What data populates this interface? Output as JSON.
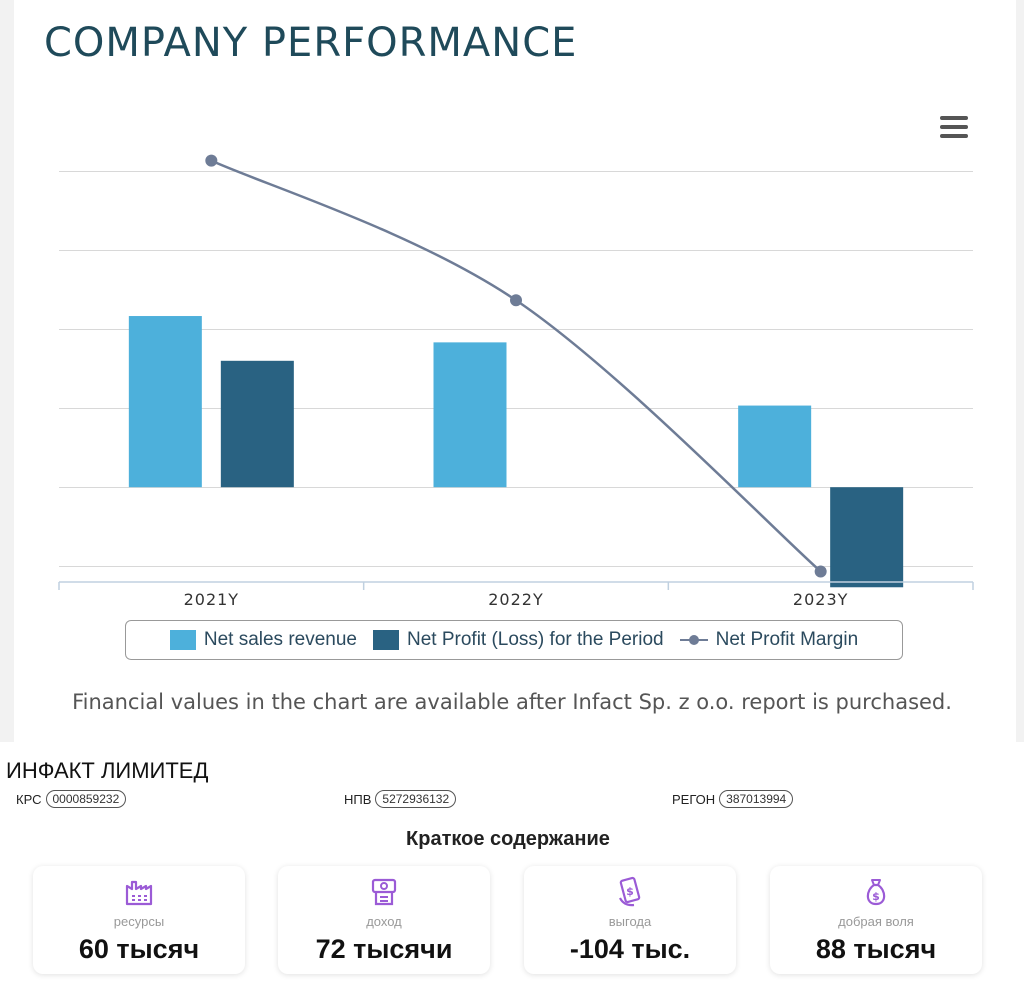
{
  "title": "COMPANY PERFORMANCE",
  "chart_data": {
    "type": "bar",
    "categories": [
      "2021Y",
      "2022Y",
      "2023Y"
    ],
    "series": [
      {
        "name": "Net sales revenue",
        "type": "bar",
        "color": "#4db0db",
        "values": [
          0.65,
          0.55,
          0.31
        ]
      },
      {
        "name": "Net Profit (Loss) for the Period",
        "type": "bar",
        "color": "#296282",
        "values": [
          0.48,
          0,
          -0.38
        ]
      },
      {
        "name": "Net Profit Margin",
        "type": "line",
        "color": "#6e7c96",
        "values": [
          1.24,
          0.71,
          -0.32
        ]
      }
    ],
    "ylim": [
      -0.36,
      1.44
    ],
    "grid": true,
    "legend": "bottom",
    "y_tick_labels_shown": false
  },
  "legend_labels": [
    "Net sales revenue",
    "Net Profit (Loss) for the Period",
    "Net Profit Margin"
  ],
  "note": "Financial values in the chart are available after Infact Sp. z o.o. report is purchased.",
  "company": {
    "name": "ИНФАКТ ЛИМИТЕД",
    "ids": [
      {
        "label": "КРС",
        "value": "0000859232"
      },
      {
        "label": "НПВ",
        "value": "5272936132"
      },
      {
        "label": "РЕГОН",
        "value": "387013994"
      }
    ]
  },
  "summary": {
    "title": "Краткое содержание",
    "cards": [
      {
        "label": "ресурсы",
        "value": "60 тысяч",
        "icon": "factory-icon"
      },
      {
        "label": "доход",
        "value": "72 тысячи",
        "icon": "cash-register-icon"
      },
      {
        "label": "выгода",
        "value": "-104 тыс.",
        "icon": "hand-money-icon"
      },
      {
        "label": "добрая воля",
        "value": "88 тысяч",
        "icon": "money-bag-icon"
      }
    ],
    "icon_color": "#9b5bd6"
  }
}
